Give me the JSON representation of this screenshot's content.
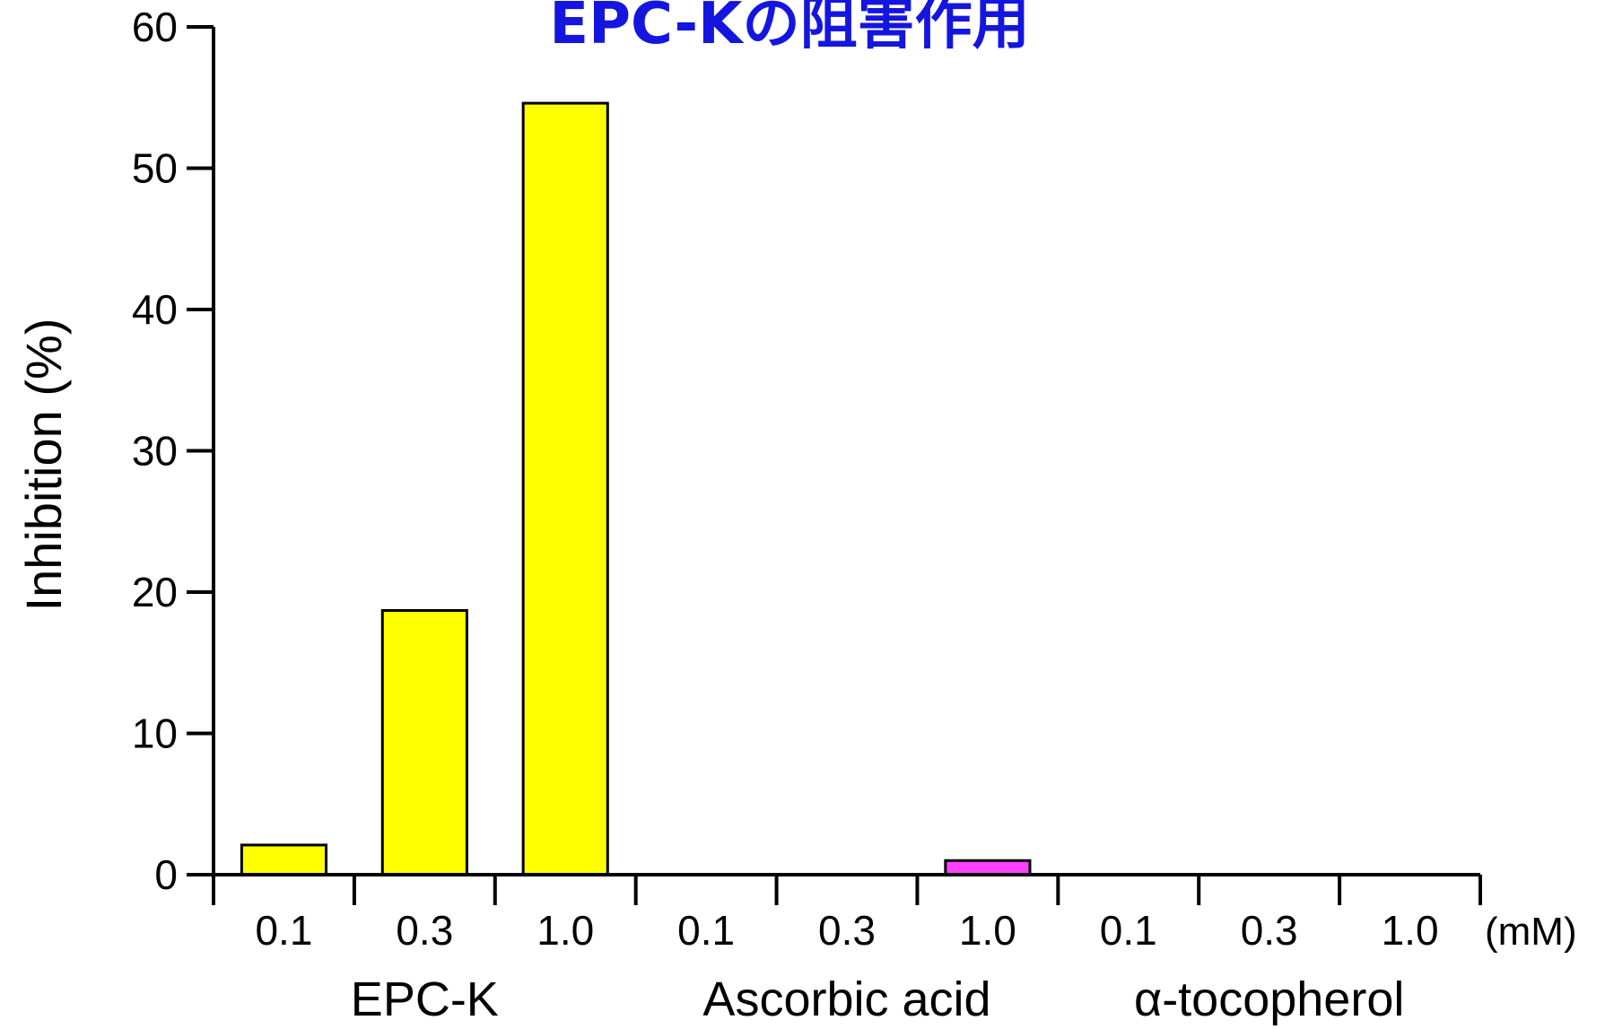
{
  "chart_data": {
    "type": "bar",
    "title": "EPC-Kの阻害作用",
    "ylabel": "Inhibition (%)",
    "xlabel": "",
    "unit_label": "(mM)",
    "ylim": [
      0,
      60
    ],
    "yticks": [
      "0",
      "10",
      "20",
      "30",
      "40",
      "50",
      "60"
    ],
    "groups": [
      {
        "name": "EPC-K",
        "color": "#ffff00",
        "categories": [
          "0.1",
          "0.3",
          "1.0"
        ],
        "values": [
          2.1,
          18.7,
          54.6
        ]
      },
      {
        "name": "Ascorbic acid",
        "color": "#ff40ff",
        "categories": [
          "0.1",
          "0.3",
          "1.0"
        ],
        "values": [
          0,
          0,
          1.0
        ]
      },
      {
        "name": "α-tocopherol",
        "color": "#ffff00",
        "categories": [
          "0.1",
          "0.3",
          "1.0"
        ],
        "values": [
          0,
          0,
          0
        ]
      }
    ],
    "grid": false,
    "legend": "none"
  }
}
